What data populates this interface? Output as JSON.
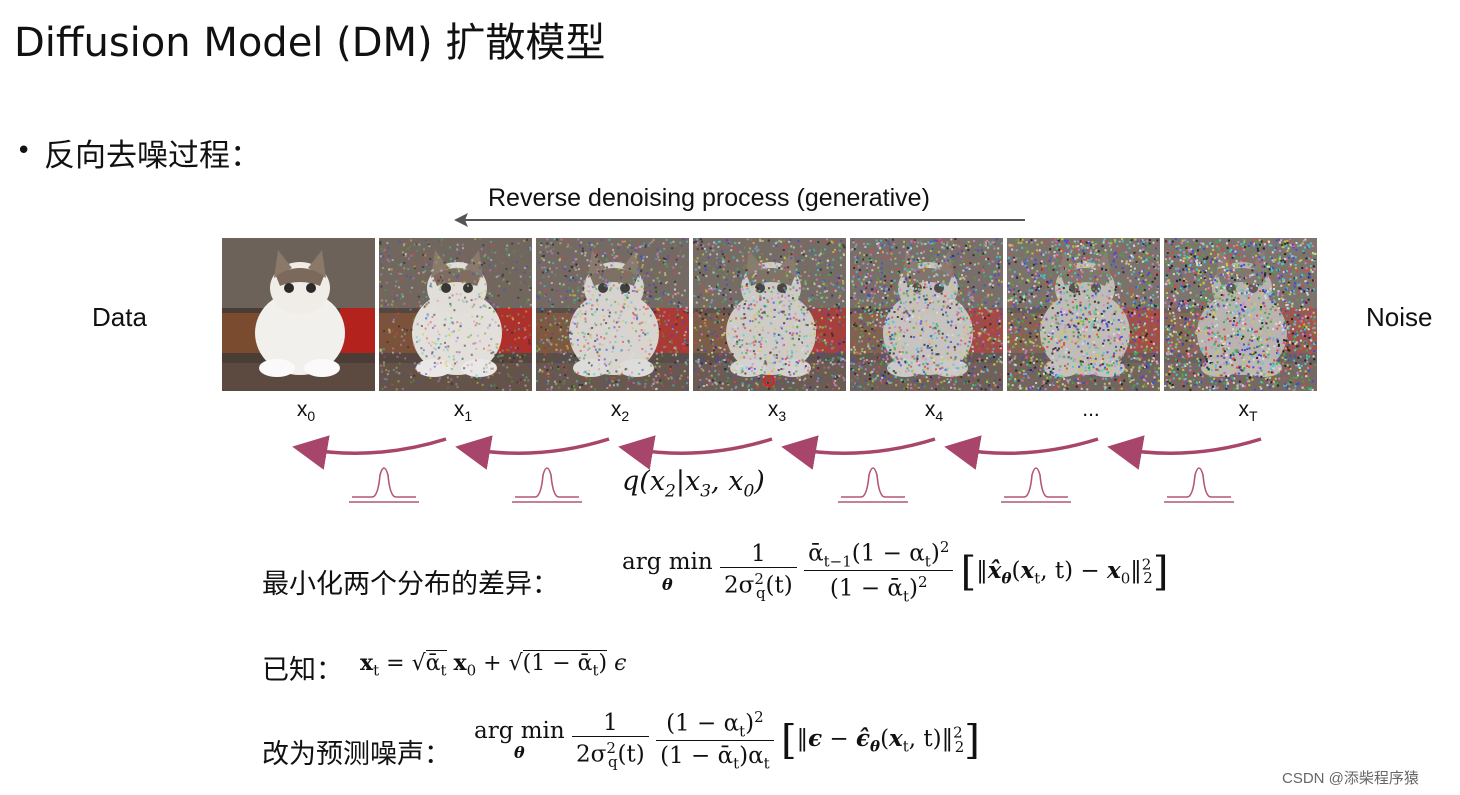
{
  "title": "Diffusion Model (DM) 扩散模型",
  "bullet": "反向去噪过程：",
  "diagram": {
    "arrow_label": "Reverse denoising process (generative)",
    "left_label": "Data",
    "right_label": "Noise",
    "states": [
      {
        "base": "x",
        "sub": "0"
      },
      {
        "base": "x",
        "sub": "1"
      },
      {
        "base": "x",
        "sub": "2"
      },
      {
        "base": "x",
        "sub": "3"
      },
      {
        "base": "x",
        "sub": "4"
      },
      {
        "base": "...",
        "sub": ""
      },
      {
        "base": "x",
        "sub": "T"
      }
    ],
    "noise_levels": [
      0,
      0.28,
      0.45,
      0.6,
      0.74,
      0.88,
      1.0
    ],
    "posterior_label": {
      "q": "q(x",
      "s1": "2",
      "mid": "|x",
      "s2": "3",
      "end": ", x",
      "s3": "0",
      "close": ")"
    },
    "colors": {
      "arrow": "#a8456a",
      "gauss": "#b25779",
      "top_arrow": "#555555"
    }
  },
  "eq1": {
    "label": "最小化两个分布的差异：",
    "argmin": "arg min",
    "argsub": "θ"
  },
  "eq2": {
    "label": "已知："
  },
  "eq3": {
    "label": "改为预测噪声：",
    "argmin": "arg min",
    "argsub": "θ"
  },
  "watermark": "CSDN @添柴程序猿"
}
